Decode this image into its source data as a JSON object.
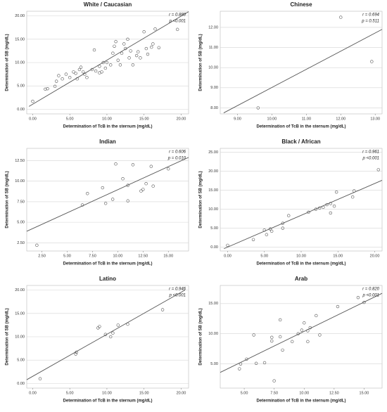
{
  "chart_data": [
    {
      "type": "scatter",
      "title": "White / Caucasian",
      "x_label": "Determination of TcB in the sternum (mg/dL)",
      "y_label": "Determination of SB (mg/dL)",
      "annotations": [
        "r = 0.880",
        "p <0.001"
      ],
      "x": [
        0,
        1.7,
        2,
        3,
        3.2,
        3.5,
        4,
        4.5,
        5,
        5.5,
        5.8,
        6,
        6.3,
        6.5,
        6.8,
        7,
        7.3,
        8,
        8.3,
        8.5,
        9,
        9,
        9.3,
        9.5,
        9.8,
        10,
        10.5,
        10.8,
        11,
        11.2,
        11.5,
        11.8,
        12,
        12.3,
        12.5,
        12.8,
        13,
        13.2,
        13.5,
        14,
        14.2,
        14.5,
        15,
        15.3,
        15.5,
        16,
        16.2,
        16.5,
        17,
        19.5
      ],
      "values": [
        1.7,
        4.3,
        4.4,
        4.9,
        6,
        7.2,
        6.5,
        7.5,
        6.8,
        8,
        7.7,
        6.5,
        8.5,
        9,
        8,
        7.5,
        6.8,
        8.5,
        12.7,
        8.2,
        7.8,
        9.2,
        8,
        10,
        8.8,
        10,
        9.5,
        12,
        13.5,
        14.5,
        10.5,
        9.5,
        12,
        14,
        13,
        15,
        11,
        12.5,
        9.5,
        11.5,
        12.3,
        11,
        16.6,
        13,
        11.8,
        13.3,
        14,
        17.2,
        13.2,
        17.1
      ],
      "fit": {
        "x": [
          -0.5,
          21
        ],
        "values": [
          0.6,
          20.9
        ]
      },
      "xlim": [
        -0.8,
        21
      ],
      "ylim": [
        -1,
        21
      ],
      "xticks": [
        {
          "value": 0,
          "label": "0.00"
        },
        {
          "value": 5,
          "label": "5.00"
        },
        {
          "value": 10,
          "label": "10.00"
        },
        {
          "value": 15,
          "label": "15.00"
        },
        {
          "value": 20,
          "label": "20.00"
        }
      ],
      "yticks": [
        {
          "value": 0,
          "label": "0.00"
        },
        {
          "value": 5,
          "label": "5.00"
        },
        {
          "value": 10,
          "label": "10.00"
        },
        {
          "value": 15,
          "label": "15.00"
        },
        {
          "value": 20,
          "label": "20.00"
        }
      ],
      "grid": true
    },
    {
      "type": "scatter",
      "title": "Chinese",
      "x_label": "Determination of TcB in the sternum (mg/dL)",
      "y_label": "Determination of SB (mg/dL)",
      "annotations": [
        "r = 0.694",
        "p = 0.511"
      ],
      "x": [
        9.6,
        12.0,
        12.9
      ],
      "values": [
        8.0,
        12.5,
        10.3
      ],
      "fit": {
        "x": [
          8.6,
          13.2
        ],
        "values": [
          7.75,
          11.9
        ]
      },
      "xlim": [
        8.5,
        13.2
      ],
      "ylim": [
        7.7,
        12.8
      ],
      "xticks": [
        {
          "value": 9,
          "label": "9.00"
        },
        {
          "value": 10,
          "label": "10.00"
        },
        {
          "value": 11,
          "label": "11.00"
        },
        {
          "value": 12,
          "label": "12.00"
        },
        {
          "value": 13,
          "label": "13.00"
        }
      ],
      "yticks": [
        {
          "value": 8,
          "label": "8.00"
        },
        {
          "value": 9,
          "label": "9.00"
        },
        {
          "value": 10,
          "label": "10.00"
        },
        {
          "value": 11,
          "label": "11.00"
        },
        {
          "value": 12,
          "label": "12.00"
        }
      ],
      "grid": true
    },
    {
      "type": "scatter",
      "title": "Indian",
      "x_label": "Determination of TcB in the sternum (mg/dL)",
      "y_label": "Determination of SB (mg/dL)",
      "annotations": [
        "r = 0.606",
        "p = 0.010"
      ],
      "x": [
        2,
        6.5,
        7,
        8.5,
        8.8,
        9.5,
        9.8,
        10.5,
        11,
        11,
        11.5,
        12.3,
        12.5,
        12.8,
        13.3,
        13.5,
        15
      ],
      "values": [
        2.2,
        7.1,
        8.5,
        9.2,
        7.3,
        7.8,
        12.1,
        10.3,
        7.6,
        9.5,
        12,
        8.8,
        9,
        9.7,
        11.8,
        9.4,
        11.5
      ],
      "fit": {
        "x": [
          1,
          17
        ],
        "values": [
          3.9,
          12.9
        ]
      },
      "xlim": [
        1,
        17
      ],
      "ylim": [
        1.5,
        14
      ],
      "xticks": [
        {
          "value": 2.5,
          "label": "2.50"
        },
        {
          "value": 5,
          "label": "5.00"
        },
        {
          "value": 7.5,
          "label": "7.50"
        },
        {
          "value": 10,
          "label": "10.00"
        },
        {
          "value": 12.5,
          "label": "12.50"
        },
        {
          "value": 15,
          "label": "15.00"
        }
      ],
      "yticks": [
        {
          "value": 2.5,
          "label": "2.50"
        },
        {
          "value": 5,
          "label": "5.00"
        },
        {
          "value": 7.5,
          "label": "7.50"
        },
        {
          "value": 10,
          "label": "10.00"
        },
        {
          "value": 12.5,
          "label": "12.50"
        }
      ],
      "grid": true
    },
    {
      "type": "scatter",
      "title": "Black / African",
      "x_label": "Determination of TcB in the sternum (mg/dL)",
      "y_label": "Determination of SB (mg/dL)",
      "annotations": [
        "r = 0.961",
        "p <0.001"
      ],
      "x": [
        0,
        3.5,
        5,
        5.3,
        5.8,
        6,
        7.5,
        7.5,
        8.3,
        11,
        12,
        12.5,
        13,
        13.5,
        14,
        14,
        14.5,
        14.8,
        17,
        17.2,
        20.5
      ],
      "values": [
        0.5,
        2,
        4.5,
        3.3,
        4.8,
        4.2,
        5,
        6.3,
        8.3,
        9.2,
        10,
        10.3,
        10.5,
        11.2,
        11.5,
        9,
        10.8,
        14.5,
        13.2,
        14.8,
        20.4
      ],
      "fit": {
        "x": [
          -0.5,
          21
        ],
        "values": [
          -0.4,
          17.6
        ]
      },
      "xlim": [
        -1,
        21
      ],
      "ylim": [
        -1,
        26
      ],
      "xticks": [
        {
          "value": 0,
          "label": "0.00"
        },
        {
          "value": 5,
          "label": "5.00"
        },
        {
          "value": 10,
          "label": "10.00"
        },
        {
          "value": 15,
          "label": "15.00"
        },
        {
          "value": 20,
          "label": "20.00"
        }
      ],
      "yticks": [
        {
          "value": 0,
          "label": "0.00"
        },
        {
          "value": 5,
          "label": "5.00"
        },
        {
          "value": 10,
          "label": "10.00"
        },
        {
          "value": 15,
          "label": "15.00"
        },
        {
          "value": 20,
          "label": "20.00"
        },
        {
          "value": 25,
          "label": "25.00"
        }
      ],
      "grid": true
    },
    {
      "type": "scatter",
      "title": "Latino",
      "x_label": "Determination of TcB in the sternum (mg/dL)",
      "y_label": "Determination of SB (mg/dL)",
      "annotations": [
        "r = 0.946",
        "p <0.001"
      ],
      "x": [
        1,
        5.8,
        5.9,
        8.8,
        9,
        9.8,
        10.5,
        10.8,
        11.5,
        12.8,
        17.5
      ],
      "values": [
        1,
        6.3,
        6.7,
        11.9,
        12.2,
        10.5,
        10,
        10.8,
        12.5,
        12.7,
        15.8
      ],
      "fit": {
        "x": [
          -0.8,
          20.5
        ],
        "values": [
          0.8,
          20
        ]
      },
      "xlim": [
        -0.8,
        21
      ],
      "ylim": [
        -1,
        21
      ],
      "xticks": [
        {
          "value": 0,
          "label": "0.00"
        },
        {
          "value": 5,
          "label": "5.00"
        },
        {
          "value": 10,
          "label": "10.00"
        },
        {
          "value": 15,
          "label": "15.00"
        },
        {
          "value": 20,
          "label": "20.00"
        }
      ],
      "yticks": [
        {
          "value": 0,
          "label": "0.00"
        },
        {
          "value": 5,
          "label": "5.00"
        },
        {
          "value": 10,
          "label": "10.00"
        },
        {
          "value": 15,
          "label": "15.00"
        },
        {
          "value": 20,
          "label": "20.00"
        }
      ],
      "grid": true
    },
    {
      "type": "scatter",
      "title": "Arab",
      "x_label": "Determination of TcB in the sternum (mg/dL)",
      "y_label": "Determination of SB (mg/dL)",
      "annotations": [
        "r = 0.820",
        "p <0.001"
      ],
      "x": [
        4.6,
        4.7,
        5.2,
        5.8,
        6,
        6.7,
        7.3,
        7.3,
        7.5,
        8,
        8,
        8.2,
        9,
        9.5,
        9.8,
        10,
        10.3,
        10.3,
        10.5,
        11,
        11.3,
        12.8,
        14.5,
        15
      ],
      "values": [
        4.2,
        5,
        5.8,
        9.8,
        5.1,
        5.2,
        9.4,
        8.8,
        2.2,
        12.3,
        9.5,
        7.3,
        8.7,
        10,
        10.6,
        11.8,
        10.5,
        8.7,
        11,
        13,
        9.8,
        14.5,
        16,
        15.2
      ],
      "fit": {
        "x": [
          3,
          16.5
        ],
        "values": [
          3.6,
          16.7
        ]
      },
      "xlim": [
        3,
        16.5
      ],
      "ylim": [
        1,
        18
      ],
      "xticks": [
        {
          "value": 5,
          "label": "5.00"
        },
        {
          "value": 7.5,
          "label": "7.50"
        },
        {
          "value": 10,
          "label": "10.00"
        },
        {
          "value": 12.5,
          "label": "12.50"
        },
        {
          "value": 15,
          "label": "15.00"
        }
      ],
      "yticks": [
        {
          "value": 5,
          "label": "5.00"
        },
        {
          "value": 10,
          "label": "10.00"
        },
        {
          "value": 15,
          "label": "15.00"
        }
      ],
      "grid": true
    }
  ]
}
